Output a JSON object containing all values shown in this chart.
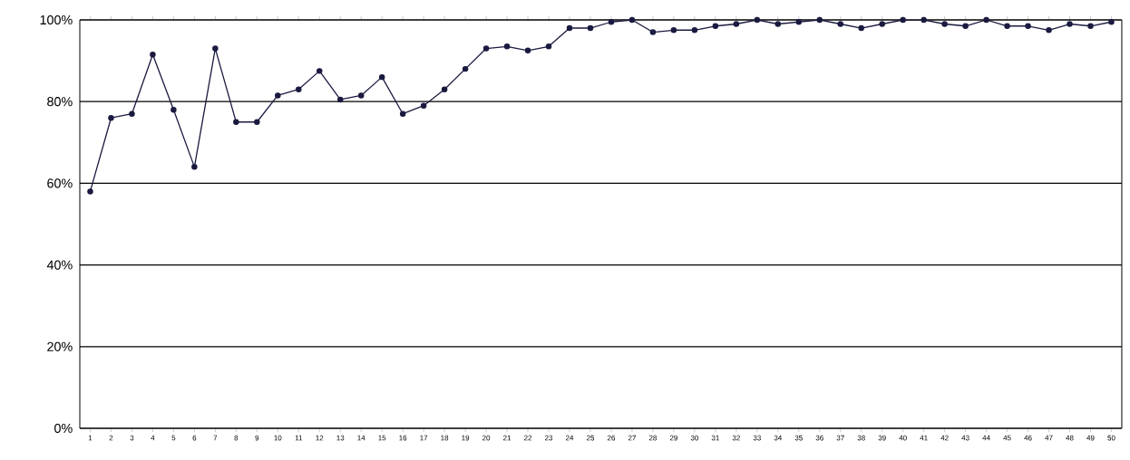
{
  "chart_data": {
    "type": "line",
    "categories": [
      "1",
      "2",
      "3",
      "4",
      "5",
      "6",
      "7",
      "8",
      "9",
      "10",
      "11",
      "12",
      "13",
      "14",
      "15",
      "16",
      "17",
      "18",
      "19",
      "20",
      "21",
      "22",
      "23",
      "24",
      "25",
      "26",
      "27",
      "28",
      "29",
      "30",
      "31",
      "32",
      "33",
      "34",
      "35",
      "36",
      "37",
      "38",
      "39",
      "40",
      "41",
      "42",
      "43",
      "44",
      "45",
      "46",
      "47",
      "48",
      "49",
      "50"
    ],
    "series": [
      {
        "color": "#1a1a40",
        "values": [
          58,
          76,
          77,
          91.5,
          78,
          64,
          93,
          75,
          75,
          81.5,
          83,
          87.5,
          80.5,
          81.5,
          86,
          77,
          79,
          83,
          88,
          93,
          93.5,
          92.5,
          93.5,
          98,
          98,
          99.5,
          100,
          97,
          97.5,
          97.5,
          98.5,
          99,
          100,
          99,
          99.5,
          100,
          99,
          98,
          99,
          100,
          100,
          99,
          98.5,
          100,
          98.5,
          98.5,
          97.5,
          99,
          98.5,
          99.5
        ]
      }
    ],
    "ylim": [
      0,
      100
    ],
    "yticks": [
      {
        "value": 0,
        "label": "0%"
      },
      {
        "value": 20,
        "label": "20%"
      },
      {
        "value": 40,
        "label": "40%"
      },
      {
        "value": 60,
        "label": "60%"
      },
      {
        "value": 80,
        "label": "80%"
      },
      {
        "value": 100,
        "label": "100%"
      }
    ],
    "grid": "y",
    "marker": "circle",
    "line_style": "solid"
  }
}
